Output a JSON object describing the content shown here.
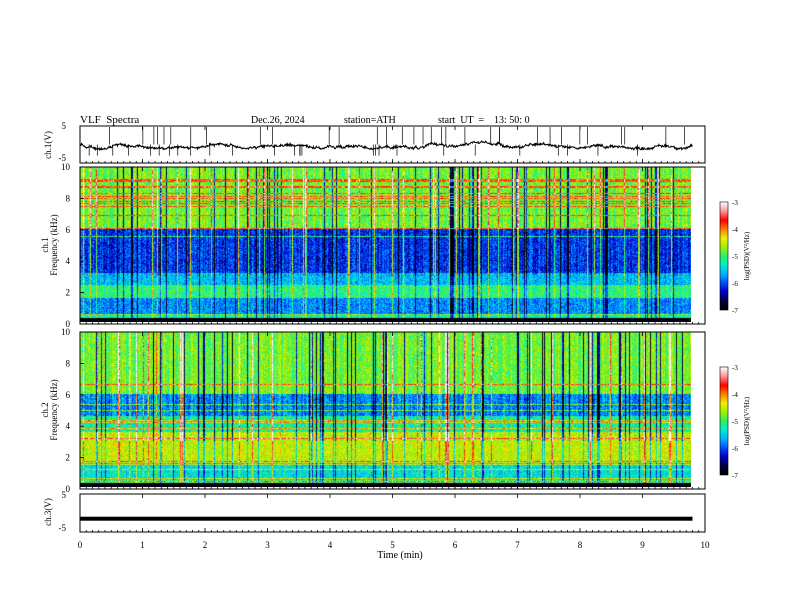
{
  "header": {
    "title": "VLF  Spectra",
    "date": "Dec.26, 2024",
    "station": "station=ATH",
    "start_ut": "start  UT  =    13: 50: 0"
  },
  "colors": {
    "spectrogram_scale": [
      "#000000",
      "#000040",
      "#0000c8",
      "#0050ff",
      "#00b4ff",
      "#00f0d0",
      "#30f060",
      "#a0f000",
      "#f0f000",
      "#ff8000",
      "#ff0000",
      "#ff9090",
      "#ffffff"
    ],
    "trace": "#000000",
    "frame": "#000000"
  },
  "chart_data": [
    {
      "type": "line",
      "name": "ch1-waveform",
      "ylabel": "ch.1(V)",
      "ylim": [
        -5,
        5
      ],
      "yticks": [
        "5",
        "-5"
      ],
      "x_range": [
        0,
        10
      ],
      "description_level": -0.2
    },
    {
      "type": "heatmap",
      "name": "ch1-spectrogram",
      "ylabel": "ch.1\nFrequency  (kHz)",
      "ylim": [
        0,
        10
      ],
      "yticks": [
        "0",
        "2",
        "4",
        "6",
        "8",
        "10"
      ],
      "x_range": [
        0,
        9.8
      ],
      "colorbar": {
        "label": "log(PSD)(V²/Hz)",
        "range": [
          -7,
          -3
        ],
        "ticks": [
          "-3",
          "-4",
          "-5",
          "-6",
          "-7"
        ]
      }
    },
    {
      "type": "heatmap",
      "name": "ch2-spectrogram",
      "ylabel": "ch.2\nFrequency  (kHz)",
      "ylim": [
        0,
        10
      ],
      "yticks": [
        "0",
        "2",
        "4",
        "6",
        "8",
        "10"
      ],
      "x_range": [
        0,
        9.8
      ],
      "colorbar": {
        "label": "log(PSD)(V²/Hz)",
        "range": [
          -7,
          -3
        ],
        "ticks": [
          "-3",
          "-4",
          "-5",
          "-6",
          "-7"
        ]
      }
    },
    {
      "type": "line",
      "name": "ch3-waveform",
      "ylabel": "ch.3(V)",
      "ylim": [
        -5,
        5
      ],
      "yticks": [
        "5",
        "-5"
      ],
      "x_range": [
        0,
        9.8
      ],
      "level": -1.5
    }
  ],
  "x_axis": {
    "label": "Time  (min)",
    "ticks": [
      "0",
      "1",
      "2",
      "3",
      "4",
      "5",
      "6",
      "7",
      "8",
      "9",
      "10"
    ],
    "range": [
      0,
      10
    ]
  }
}
